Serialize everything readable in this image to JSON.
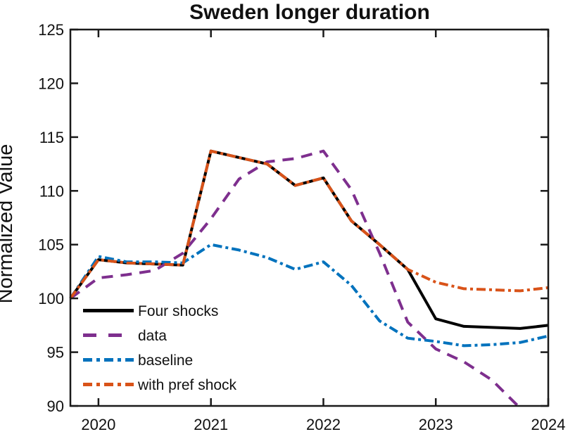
{
  "chart_data": {
    "type": "line",
    "title": "Sweden longer duration",
    "xlabel": "",
    "ylabel": "Normalized Value",
    "xlim": [
      2019.75,
      2024
    ],
    "ylim": [
      90,
      125
    ],
    "xticks": [
      2020,
      2021,
      2022,
      2023,
      2024
    ],
    "yticks": [
      90,
      95,
      100,
      105,
      110,
      115,
      120,
      125
    ],
    "grid": false,
    "legend_location": "inside-lower-left",
    "x": [
      2019.75,
      2020.0,
      2020.25,
      2020.5,
      2020.75,
      2021.0,
      2021.25,
      2021.5,
      2021.75,
      2022.0,
      2022.25,
      2022.5,
      2022.75,
      2023.0,
      2023.25,
      2023.5,
      2023.75,
      2024.0
    ],
    "series": [
      {
        "name": "Four shocks",
        "color": "#000000",
        "line_style": "solid",
        "values": [
          100,
          103.6,
          103.3,
          103.2,
          103.1,
          113.7,
          113.1,
          112.5,
          110.5,
          111.2,
          107.2,
          105.0,
          102.7,
          98.1,
          97.4,
          97.3,
          97.2,
          97.5
        ]
      },
      {
        "name": "data",
        "color": "#7E2F8E",
        "line_style": "dashed",
        "values": [
          100,
          101.9,
          102.2,
          102.6,
          104.2,
          107.4,
          111.1,
          112.7,
          113.0,
          113.7,
          110.1,
          104.2,
          97.8,
          95.3,
          94.1,
          92.4,
          89.8,
          null
        ]
      },
      {
        "name": "baseline",
        "color": "#0072BD",
        "line_style": "dash-dot",
        "values": [
          100,
          103.9,
          103.4,
          103.4,
          103.3,
          105.0,
          104.5,
          103.8,
          102.7,
          103.4,
          101.2,
          97.9,
          96.3,
          96.0,
          95.6,
          95.7,
          95.9,
          96.5
        ]
      },
      {
        "name": "with pref shock",
        "color": "#D95319",
        "line_style": "dash-dot",
        "values": [
          100,
          103.6,
          103.3,
          103.2,
          103.1,
          113.7,
          113.1,
          112.5,
          110.5,
          111.2,
          107.2,
          105.0,
          102.7,
          101.5,
          100.9,
          100.8,
          100.7,
          101.0
        ]
      }
    ]
  }
}
